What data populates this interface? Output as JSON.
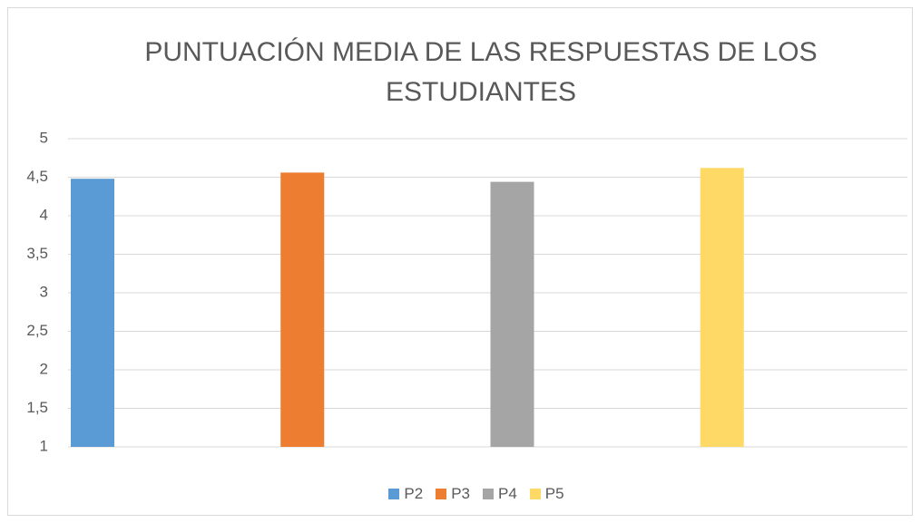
{
  "chart_data": {
    "type": "bar",
    "title": "PUNTUACIÓN MEDIA DE LAS RESPUESTAS DE LOS ESTUDIANTES",
    "categories": [
      null
    ],
    "series": [
      {
        "name": "P2",
        "color": "#5b9bd5",
        "values": [
          4.48
        ]
      },
      {
        "name": "P3",
        "color": "#ed7d31",
        "values": [
          4.56
        ]
      },
      {
        "name": "P4",
        "color": "#a5a5a5",
        "values": [
          4.44
        ]
      },
      {
        "name": "P5",
        "color": "#ffd966",
        "values": [
          4.62
        ]
      }
    ],
    "ylim": [
      1,
      5
    ],
    "yticks": [
      1,
      {
        "value": 1.5,
        "label": "1,5"
      },
      2,
      {
        "value": 2.5,
        "label": "2,5"
      },
      3,
      {
        "value": 3.5,
        "label": "3,5"
      },
      4,
      {
        "value": 4.5,
        "label": "4,5"
      },
      5
    ],
    "grid": true,
    "legend": "bottom"
  }
}
